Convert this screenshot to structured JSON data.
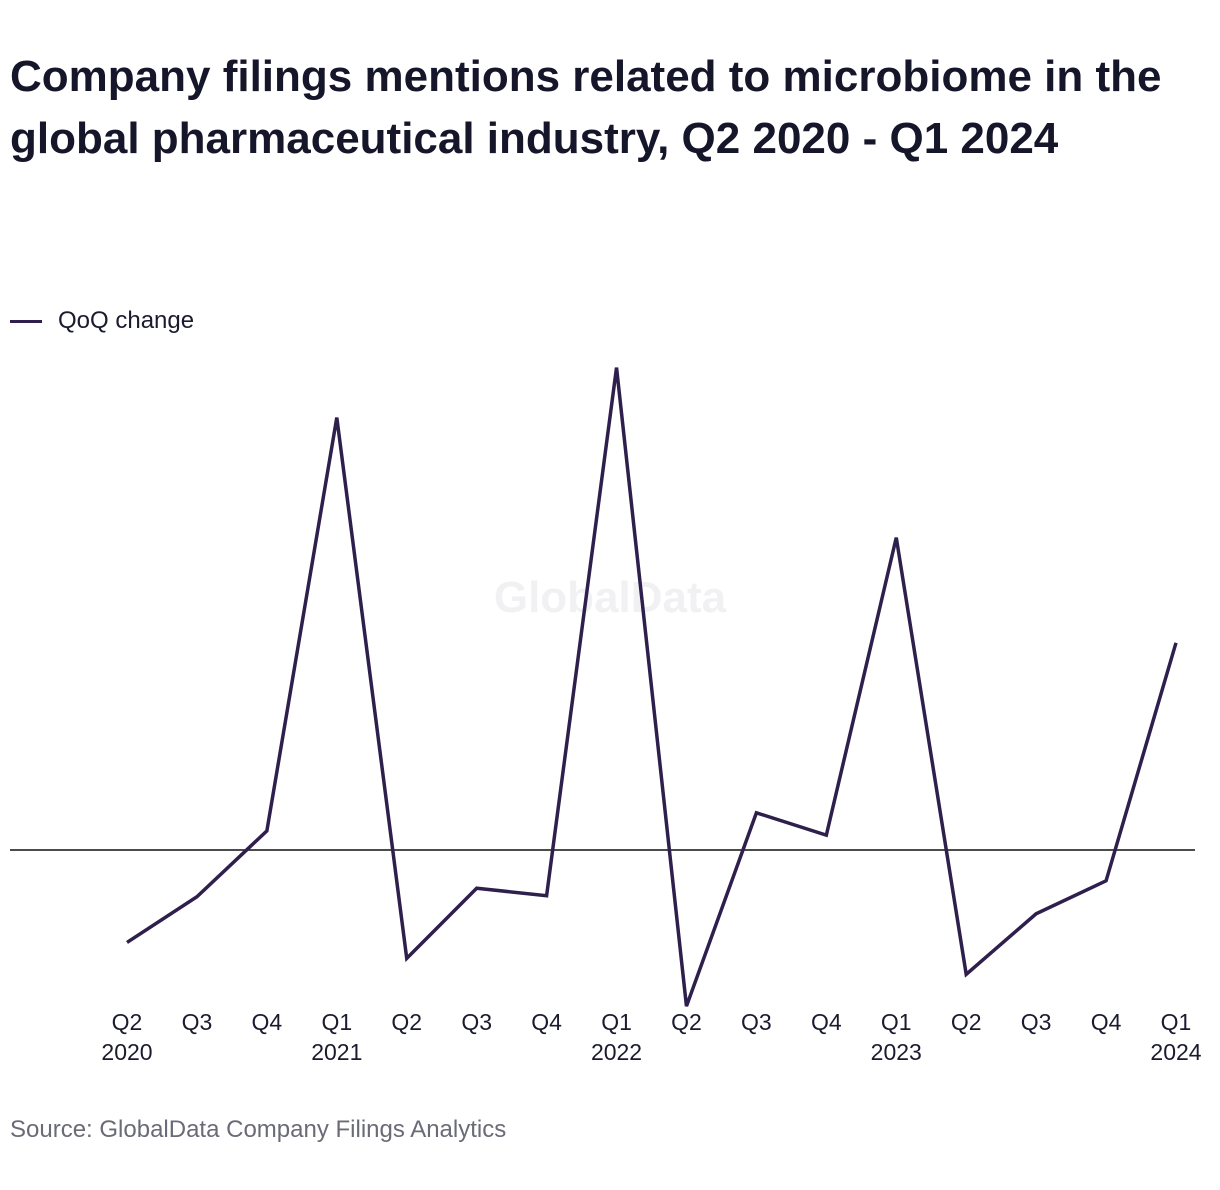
{
  "title": "Company filings mentions related to microbiome in the global pharmaceutical industry, Q2 2020 - Q1 2024",
  "source": "Source: GlobalData Company Filings Analytics",
  "watermark": "GlobalData",
  "colors": {
    "line": "#2e1f4d",
    "zero_line": "#111111",
    "text": "#1b1b2f",
    "source_text": "#6b6b78"
  },
  "chart_data": {
    "type": "line",
    "title": "Company filings mentions related to microbiome in the global pharmaceutical industry, Q2 2020 - Q1 2024",
    "xlabel": "",
    "ylabel": "",
    "y_axis_labels": "none",
    "grid": false,
    "legend_position": "top-left",
    "categories": [
      [
        "Q2",
        "2020"
      ],
      [
        "Q3",
        ""
      ],
      [
        "Q4",
        ""
      ],
      [
        "Q1",
        "2021"
      ],
      [
        "Q2",
        ""
      ],
      [
        "Q3",
        ""
      ],
      [
        "Q4",
        ""
      ],
      [
        "Q1",
        "2022"
      ],
      [
        "Q2",
        ""
      ],
      [
        "Q3",
        ""
      ],
      [
        "Q4",
        ""
      ],
      [
        "Q1",
        "2023"
      ],
      [
        "Q2",
        ""
      ],
      [
        "Q3",
        ""
      ],
      [
        "Q4",
        ""
      ],
      [
        "Q1",
        "2024"
      ]
    ],
    "series": [
      {
        "name": "QoQ change",
        "values": [
          -87,
          -44,
          18,
          407,
          -102,
          -36,
          -43,
          454,
          -147,
          35,
          14,
          294,
          -117,
          -60,
          -29,
          195
        ]
      }
    ],
    "ylim": [
      -160,
      480
    ]
  }
}
